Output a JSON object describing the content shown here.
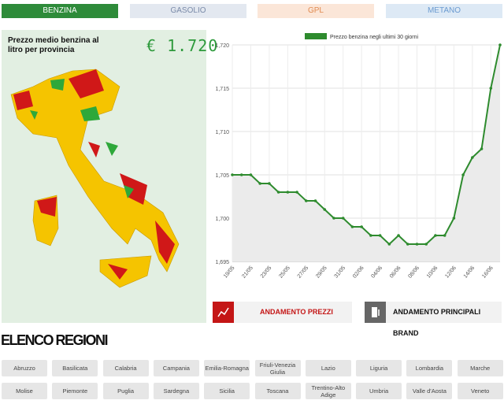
{
  "tabs": [
    "BENZINA",
    "GASOLIO",
    "GPL",
    "METANO"
  ],
  "map_panel": {
    "title": "Prezzo medio benzina al litro per provincia",
    "price": "€ 1.720"
  },
  "chart_data": {
    "type": "line",
    "categories": [
      "19/05",
      null,
      "21/05",
      null,
      "23/05",
      null,
      "25/05",
      null,
      "27/05",
      null,
      "29/05",
      null,
      "31/05",
      null,
      "02/06",
      null,
      "04/06",
      null,
      "06/06",
      null,
      "08/06",
      null,
      "10/06",
      null,
      "12/06",
      null,
      "14/06",
      null,
      "16/06",
      null
    ],
    "series": [
      {
        "name": "Prezzo benzina negli ultimi 30 giorni",
        "color": "#2e8b2e",
        "values": [
          1.705,
          1.705,
          1.705,
          1.704,
          1.704,
          1.703,
          1.703,
          1.703,
          1.702,
          1.702,
          1.701,
          1.7,
          1.7,
          1.699,
          1.699,
          1.698,
          1.698,
          1.697,
          1.698,
          1.697,
          1.697,
          1.697,
          1.698,
          1.698,
          1.7,
          1.705,
          1.707,
          1.708,
          1.715,
          1.72
        ]
      }
    ],
    "ylim": [
      1.695,
      1.72
    ],
    "yticks": [
      {
        "value": 1.695,
        "label": "1,695"
      },
      {
        "value": 1.7,
        "label": "1,700"
      },
      {
        "value": 1.705,
        "label": "1,705"
      },
      {
        "value": 1.71,
        "label": "1,710"
      },
      {
        "value": 1.715,
        "label": "1,715"
      },
      {
        "value": 1.72,
        "label": "1,720"
      }
    ],
    "grid": true,
    "legend": "top"
  },
  "buttons": [
    "ANDAMENTO PREZZI",
    "ANDAMENTO PRINCIPALI BRAND"
  ],
  "regions": {
    "title": "ELENCO REGIONI",
    "items": [
      "Abruzzo",
      "Basilicata",
      "Calabria",
      "Campania",
      "Emilia-Romagna",
      "Friuli-Venezia Giulia",
      "Lazio",
      "Liguria",
      "Lombardia",
      "Marche",
      "Molise",
      "Piemonte",
      "Puglia",
      "Sardegna",
      "Sicilia",
      "Toscana",
      "Trentino-Alto Adige",
      "Umbria",
      "Valle d'Aosta",
      "Veneto"
    ]
  }
}
